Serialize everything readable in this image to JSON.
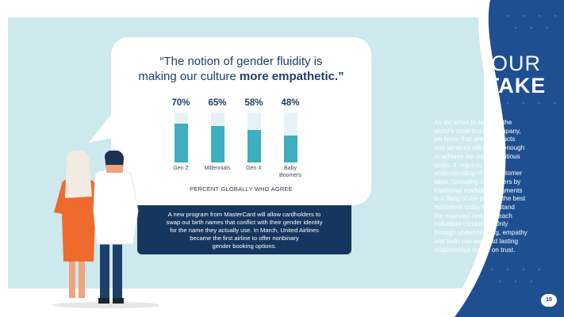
{
  "quote": {
    "line1": "“The notion of gender fluidity is",
    "line2_pre": "making our culture ",
    "line2_emph": "more empathetic.”"
  },
  "chart_data": {
    "type": "bar",
    "categories": [
      "Gen Z",
      "Millennials",
      "Gen X",
      "Baby Boomers"
    ],
    "category_lines": [
      [
        "Gen Z"
      ],
      [
        "Millennials"
      ],
      [
        "Gen X"
      ],
      [
        "Baby",
        "Boomers"
      ]
    ],
    "values": [
      70,
      65,
      58,
      48
    ],
    "value_labels": [
      "70%",
      "65%",
      "58%",
      "48%"
    ],
    "ylim": [
      0,
      100
    ],
    "xlabel": "PERCENT GLOBALLY WHO AGREE",
    "colors": {
      "fill": "#3eaec0",
      "track": "#e6f3f5"
    }
  },
  "callout": {
    "lines": [
      "A new program from MasterCard will allow cardholders to",
      "swap out birth names that conflict with their gender identity",
      "for the name they actually use. In March, United Airlines",
      "became the first airline to offer nonbinary",
      "gender booking options."
    ]
  },
  "our_take": {
    "title_line1": "OUR",
    "title_line2": "TAKE",
    "body_lines": [
      "As we strive to become the",
      "world’s most trusted company,",
      "we know that great products",
      "and services will not be enough",
      "to achieve our most ambitious",
      "goals. It requires a deep",
      "understanding of our customer",
      "base. Grouping consumers by",
      "traditional marketing segments",
      "is a thing of the past — the best",
      "marketers today understand",
      "the nuanced needs of each",
      "individual consumer. Only",
      "through understanding, empathy",
      "and truth can we build lasting",
      "relationships based on trust."
    ]
  },
  "page_number": "15",
  "colors": {
    "navy": "#15365f",
    "teal": "#3eaec0",
    "panel": "#cde9ee",
    "orange": "#ee6b2d"
  }
}
